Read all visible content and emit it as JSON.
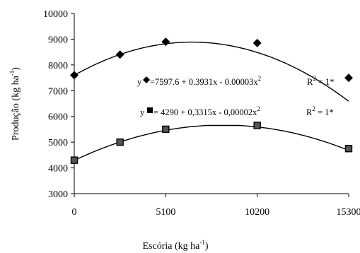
{
  "chart_data": {
    "type": "scatter",
    "xlabel": "Escória (kg ha",
    "xlabel_sup": "-1",
    "xlabel_close": ")",
    "ylabel": "Produção (kg ha",
    "ylabel_sup": "-1",
    "ylabel_close": ")",
    "xlim": [
      0,
      15300
    ],
    "ylim": [
      3000,
      10000
    ],
    "x_ticks": [
      0,
      5100,
      10200,
      15300
    ],
    "y_ticks": [
      3000,
      4000,
      5000,
      6000,
      7000,
      8000,
      9000,
      10000
    ],
    "grid": false,
    "series": [
      {
        "marker": "diamond",
        "x": [
          0,
          2550,
          5100,
          10200,
          15300
        ],
        "y": [
          7600,
          8400,
          8900,
          8850,
          7500
        ],
        "fit": {
          "a": 7597.6,
          "b": 0.3931,
          "c": -3e-05,
          "ymax": 9000
        },
        "equation": {
          "prefix": "y",
          "text": "=7597.6 + 0.3931x - 0.00003x",
          "sup": "2",
          "r2_label": "R",
          "r2_sup": "2",
          "r2_value": " = 1*"
        }
      },
      {
        "marker": "square",
        "x": [
          0,
          2550,
          5100,
          10200,
          15300
        ],
        "y": [
          4300,
          5000,
          5500,
          5650,
          4750
        ],
        "fit": {
          "a": 4290,
          "b": 0.3315,
          "c": -2e-05,
          "ymax": 5650
        },
        "equation": {
          "prefix": "y",
          "text": " = 4290 + 0,3315x - 0,00002x",
          "sup": "2",
          "r2_label": "R",
          "r2_sup": "2",
          "r2_value": " = 1*"
        }
      }
    ]
  }
}
